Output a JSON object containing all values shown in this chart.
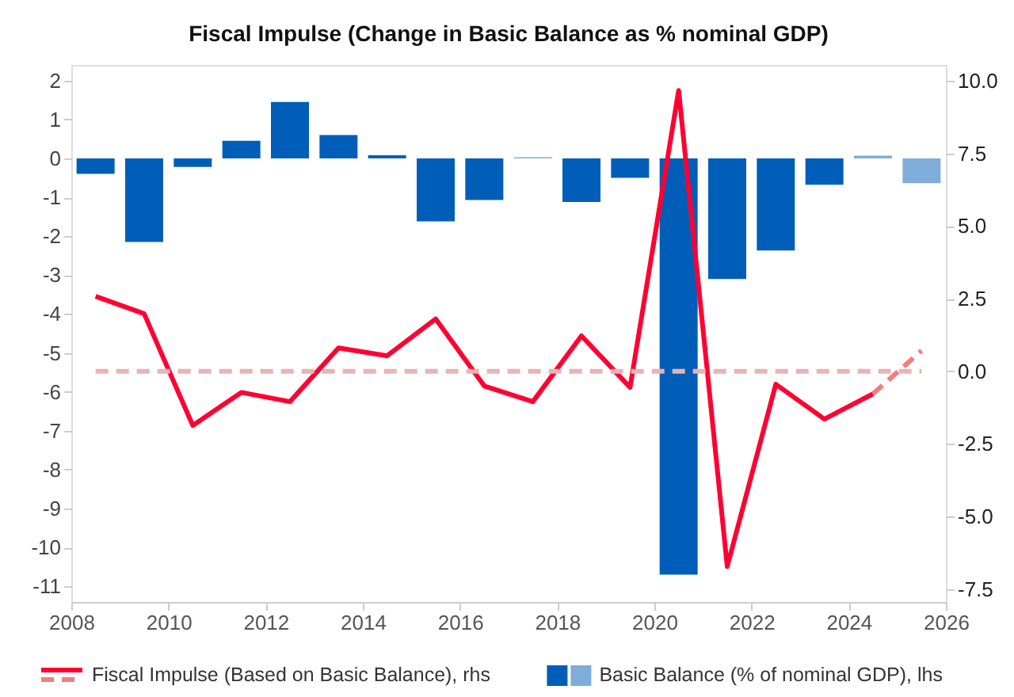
{
  "chart_data": {
    "type": "bar",
    "title": "Fiscal Impulse (Change in Basic Balance as % nominal GDP)",
    "x": [
      2008.5,
      2009.5,
      2010.5,
      2011.5,
      2012.5,
      2013.5,
      2014.5,
      2015.5,
      2016.5,
      2017.5,
      2018.5,
      2019.5,
      2020.5,
      2021.5,
      2022.5,
      2023.5,
      2024.5,
      2025.5
    ],
    "series": [
      {
        "name": "Basic Balance (% of nominal GDP), lhs",
        "axis": "y",
        "colors": [
          "#005eb8",
          "#005eb8",
          "#005eb8",
          "#005eb8",
          "#005eb8",
          "#005eb8",
          "#005eb8",
          "#005eb8",
          "#005eb8",
          "#7fadd9",
          "#005eb8",
          "#005eb8",
          "#005eb8",
          "#005eb8",
          "#005eb8",
          "#005eb8",
          "#7fadd9",
          "#7fadd9"
        ],
        "values": [
          -0.4,
          -2.15,
          -0.22,
          0.45,
          1.45,
          0.6,
          0.08,
          -1.62,
          -1.07,
          0.03,
          -1.12,
          -0.5,
          -10.7,
          -3.1,
          -2.37,
          -0.68,
          0.07,
          -0.64
        ]
      },
      {
        "name": "Fiscal Impulse (Based on Basic Balance), rhs",
        "type": "line",
        "axis": "y2",
        "color": "#ff0033",
        "line_style": "solid",
        "x": [
          2008.5,
          2009.5,
          2010.5,
          2011.5,
          2012.5,
          2013.5,
          2014.5,
          2015.5,
          2016.5,
          2017.5,
          2018.5,
          2019.5,
          2020.5,
          2021.5,
          2022.5,
          2023.5,
          2024.5
        ],
        "values": [
          2.58,
          1.98,
          -1.87,
          -0.73,
          -1.05,
          0.8,
          0.53,
          1.8,
          -0.51,
          -1.05,
          1.22,
          -0.56,
          9.67,
          -6.73,
          -0.45,
          -1.65,
          -0.78
        ]
      },
      {
        "type": "line",
        "axis": "y2",
        "color": "#f47c7c",
        "line_style": "dashed",
        "x": [
          2024.5,
          2025.5
        ],
        "values": [
          -0.78,
          0.71
        ]
      }
    ],
    "xlim": [
      2008,
      2026
    ],
    "xticks": [
      2008,
      2010,
      2012,
      2014,
      2016,
      2018,
      2020,
      2022,
      2024,
      2026
    ],
    "ylim": [
      -11.4,
      2.4
    ],
    "yticks": [
      -11,
      -10,
      -9,
      -8,
      -7,
      -6,
      -5,
      -4,
      -3,
      -2,
      -1,
      0,
      1,
      2
    ],
    "y2lim": [
      -7.95,
      10.55
    ],
    "y2ticks": [
      {
        "value": -7.5,
        "label": "-7.5"
      },
      {
        "value": -5,
        "label": "-5.0"
      },
      {
        "value": -2.5,
        "label": "-2.5"
      },
      {
        "value": 0,
        "label": "0.0"
      },
      {
        "value": 2.5,
        "label": "2.5"
      },
      {
        "value": 5,
        "label": "5.0"
      },
      {
        "value": 7.5,
        "label": "7.5"
      },
      {
        "value": 10,
        "label": "10.0"
      }
    ],
    "ref_lines": [
      {
        "axis": "y2",
        "value": 0,
        "color": "#e8b4b4",
        "line_style": "dashed"
      }
    ],
    "grid": false,
    "legend": "bottom"
  }
}
